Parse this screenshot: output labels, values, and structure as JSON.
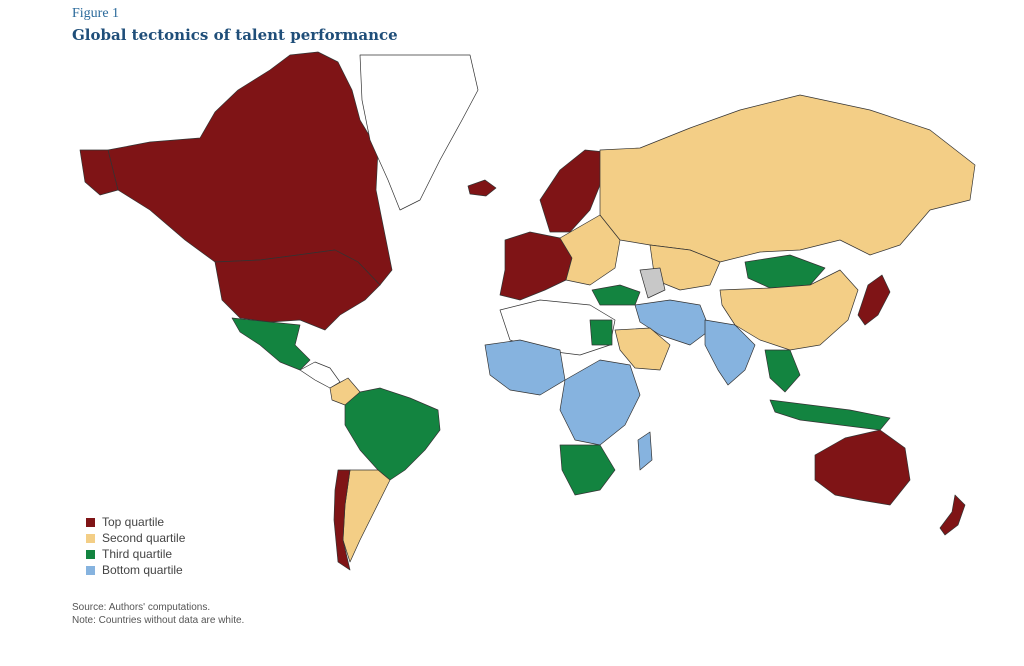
{
  "figure": {
    "label": "Figure 1",
    "title": "Global tectonics of talent performance"
  },
  "legend": {
    "items": [
      {
        "label": "Top quartile",
        "color": "#7f1416"
      },
      {
        "label": "Second quartile",
        "color": "#f3ce86"
      },
      {
        "label": "Third quartile",
        "color": "#138440"
      },
      {
        "label": "Bottom quartile",
        "color": "#86b3df"
      }
    ]
  },
  "colors": {
    "no_data": "#ffffff",
    "excluded": "#c8c8c8"
  },
  "notes": {
    "source": "Source: Authors' computations.",
    "note": "Note: Countries without data are white."
  }
}
